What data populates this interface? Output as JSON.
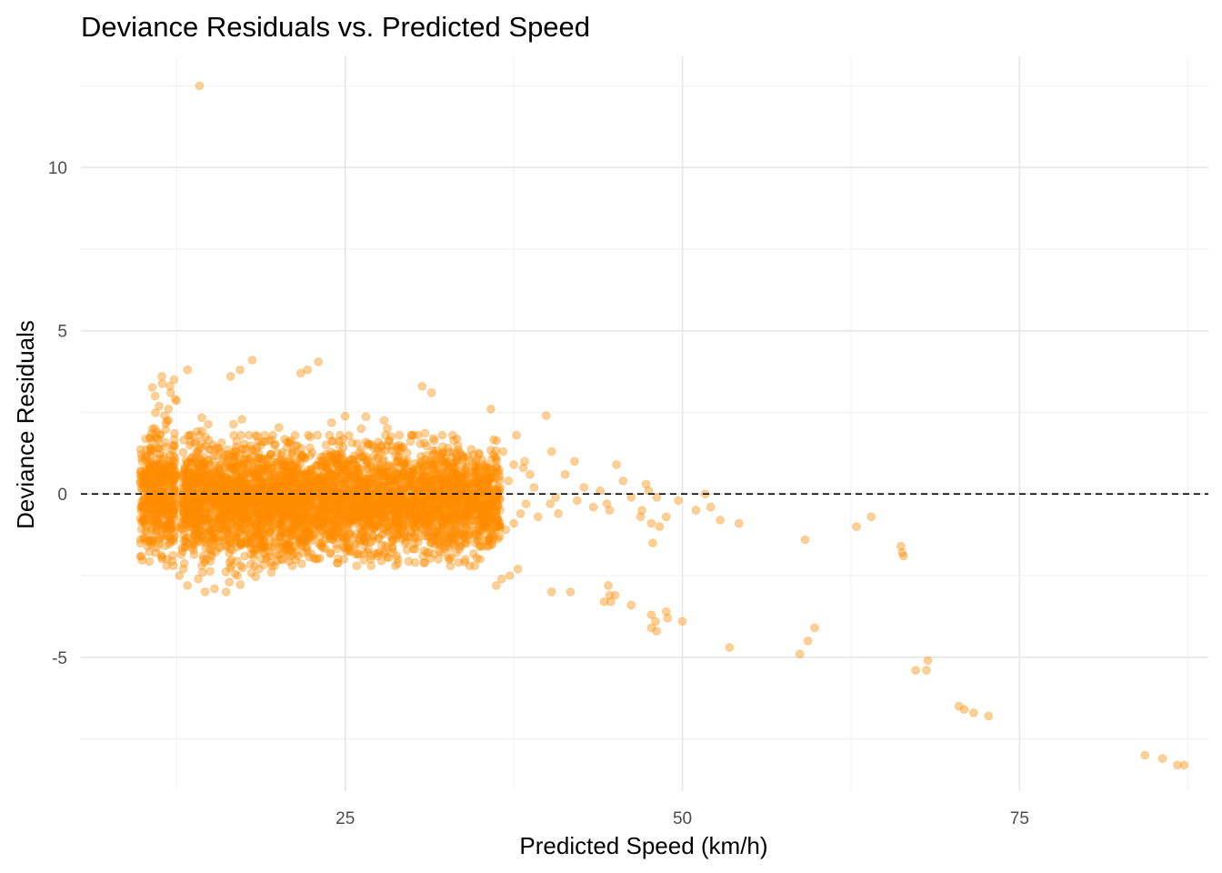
{
  "chart_data": {
    "type": "scatter",
    "title": "Deviance Residuals vs. Predicted Speed",
    "xlabel": "Predicted Speed (km/h)",
    "ylabel": "Deviance Residuals",
    "xlim": [
      5.4,
      89.0
    ],
    "ylim": [
      -9.1,
      13.4
    ],
    "x_ticks": [
      25,
      50,
      75
    ],
    "x_tick_labels": [
      "25",
      "50",
      "75"
    ],
    "x_minor_ticks": [
      12.5,
      37.5,
      62.5,
      87.5
    ],
    "y_ticks": [
      -5,
      0,
      5,
      10
    ],
    "y_tick_labels": [
      "-5",
      "0",
      "5",
      "10"
    ],
    "y_minor_ticks": [
      -7.5,
      -2.5,
      2.5,
      7.5,
      12.5
    ],
    "grid": true,
    "reference_line": {
      "y": 0,
      "style": "dashed",
      "color": "#000000"
    },
    "point_color": "#FF8C00",
    "point_opacity": 0.4,
    "series": [
      {
        "clusters": [
          {
            "x_range": [
              9.8,
              12.4
            ],
            "y_range": [
              -2.2,
              2.0
            ],
            "count": 420
          },
          {
            "x_range": [
              10.5,
              12.5
            ],
            "y_range": [
              -1.0,
              3.6
            ],
            "count": 40
          },
          {
            "x_range": [
              12.8,
              36.5
            ],
            "y_range": [
              -2.2,
              1.8
            ],
            "count": 3200
          },
          {
            "x_range": [
              13.0,
              22.0
            ],
            "y_range": [
              -3.0,
              2.5
            ],
            "count": 320
          },
          {
            "x_range": [
              22.0,
              34.0
            ],
            "y_range": [
              -2.0,
              2.4
            ],
            "count": 260
          }
        ],
        "points": [
          {
            "x": 14.2,
            "y": 12.5
          },
          {
            "x": 13.3,
            "y": 3.8
          },
          {
            "x": 12.3,
            "y": 3.5
          },
          {
            "x": 11.4,
            "y": 3.6
          },
          {
            "x": 10.9,
            "y": 3.0
          },
          {
            "x": 18.1,
            "y": 4.1
          },
          {
            "x": 16.5,
            "y": 3.6
          },
          {
            "x": 17.2,
            "y": 3.8
          },
          {
            "x": 21.7,
            "y": 3.7
          },
          {
            "x": 22.2,
            "y": 3.8
          },
          {
            "x": 23.0,
            "y": 4.05
          },
          {
            "x": 30.7,
            "y": 3.3
          },
          {
            "x": 31.4,
            "y": 3.1
          },
          {
            "x": 35.8,
            "y": 2.6
          },
          {
            "x": 39.9,
            "y": 2.4
          },
          {
            "x": 37.7,
            "y": 1.8
          },
          {
            "x": 36.7,
            "y": 1.3
          },
          {
            "x": 38.3,
            "y": 1.0
          },
          {
            "x": 39.0,
            "y": 0.2
          },
          {
            "x": 40.3,
            "y": 1.3
          },
          {
            "x": 41.3,
            "y": 0.6
          },
          {
            "x": 42.0,
            "y": 1.0
          },
          {
            "x": 42.7,
            "y": 0.2
          },
          {
            "x": 43.9,
            "y": 0.1
          },
          {
            "x": 44.4,
            "y": -0.3
          },
          {
            "x": 45.1,
            "y": 0.9
          },
          {
            "x": 45.6,
            "y": 0.4
          },
          {
            "x": 47.3,
            "y": 0.3
          },
          {
            "x": 47.5,
            "y": 0.1
          },
          {
            "x": 48.1,
            "y": -0.1
          },
          {
            "x": 47.0,
            "y": -0.5
          },
          {
            "x": 46.9,
            "y": -0.7
          },
          {
            "x": 47.7,
            "y": -0.9
          },
          {
            "x": 48.3,
            "y": -1.0
          },
          {
            "x": 48.8,
            "y": -0.7
          },
          {
            "x": 47.8,
            "y": -1.5
          },
          {
            "x": 49.7,
            "y": -0.2
          },
          {
            "x": 51.0,
            "y": -0.5
          },
          {
            "x": 51.7,
            "y": 0.0
          },
          {
            "x": 52.1,
            "y": -0.4
          },
          {
            "x": 52.8,
            "y": -0.8
          },
          {
            "x": 54.2,
            "y": -0.9
          },
          {
            "x": 40.2,
            "y": -0.3
          },
          {
            "x": 40.8,
            "y": -0.6
          },
          {
            "x": 42.2,
            "y": -0.2
          },
          {
            "x": 43.4,
            "y": -0.4
          },
          {
            "x": 44.6,
            "y": -0.5
          },
          {
            "x": 46.2,
            "y": -0.1
          },
          {
            "x": 40.3,
            "y": -3.0
          },
          {
            "x": 41.7,
            "y": -3.0
          },
          {
            "x": 44.2,
            "y": -3.3
          },
          {
            "x": 44.5,
            "y": -2.8
          },
          {
            "x": 44.6,
            "y": -3.1
          },
          {
            "x": 44.7,
            "y": -3.3
          },
          {
            "x": 45.0,
            "y": -3.1
          },
          {
            "x": 46.2,
            "y": -3.4
          },
          {
            "x": 47.7,
            "y": -3.7
          },
          {
            "x": 48.0,
            "y": -3.9
          },
          {
            "x": 48.8,
            "y": -3.6
          },
          {
            "x": 48.9,
            "y": -3.8
          },
          {
            "x": 48.1,
            "y": -4.2
          },
          {
            "x": 47.7,
            "y": -4.1
          },
          {
            "x": 50.0,
            "y": -3.9
          },
          {
            "x": 53.5,
            "y": -4.7
          },
          {
            "x": 58.7,
            "y": -4.9
          },
          {
            "x": 59.3,
            "y": -4.5
          },
          {
            "x": 59.8,
            "y": -4.1
          },
          {
            "x": 59.1,
            "y": -1.4
          },
          {
            "x": 62.9,
            "y": -1.0
          },
          {
            "x": 64.0,
            "y": -0.7
          },
          {
            "x": 66.2,
            "y": -1.6
          },
          {
            "x": 66.3,
            "y": -1.8
          },
          {
            "x": 66.4,
            "y": -1.9
          },
          {
            "x": 67.3,
            "y": -5.4
          },
          {
            "x": 68.2,
            "y": -5.1
          },
          {
            "x": 68.1,
            "y": -5.4
          },
          {
            "x": 70.5,
            "y": -6.5
          },
          {
            "x": 70.9,
            "y": -6.6
          },
          {
            "x": 71.6,
            "y": -6.7
          },
          {
            "x": 72.7,
            "y": -6.8
          },
          {
            "x": 84.3,
            "y": -8.0
          },
          {
            "x": 85.6,
            "y": -8.1
          },
          {
            "x": 86.7,
            "y": -8.3
          },
          {
            "x": 87.2,
            "y": -8.3
          },
          {
            "x": 36.2,
            "y": -2.8
          },
          {
            "x": 37.2,
            "y": -2.5
          },
          {
            "x": 37.8,
            "y": -2.3
          },
          {
            "x": 36.6,
            "y": -2.6
          },
          {
            "x": 35.0,
            "y": -2.0
          },
          {
            "x": 34.6,
            "y": -2.2
          },
          {
            "x": 33.9,
            "y": -2.0
          },
          {
            "x": 33.4,
            "y": -2.1
          },
          {
            "x": 32.8,
            "y": -2.2
          },
          {
            "x": 31.9,
            "y": -2.0
          },
          {
            "x": 30.9,
            "y": -2.1
          },
          {
            "x": 28.9,
            "y": -2.0
          },
          {
            "x": 27.4,
            "y": -1.9
          },
          {
            "x": 26.9,
            "y": -2.0
          },
          {
            "x": 24.9,
            "y": -2.0
          },
          {
            "x": 23.9,
            "y": -1.8
          },
          {
            "x": 22.8,
            "y": -2.0
          },
          {
            "x": 21.9,
            "y": -1.8
          },
          {
            "x": 19.5,
            "y": -2.1
          },
          {
            "x": 18.6,
            "y": -2.3
          },
          {
            "x": 17.0,
            "y": -2.5
          },
          {
            "x": 16.4,
            "y": -2.7
          },
          {
            "x": 15.3,
            "y": -2.9
          },
          {
            "x": 14.6,
            "y": -3.0
          },
          {
            "x": 13.3,
            "y": -2.8
          },
          {
            "x": 12.7,
            "y": -2.5
          },
          {
            "x": 38.7,
            "y": 0.6
          },
          {
            "x": 38.2,
            "y": 0.8
          },
          {
            "x": 37.5,
            "y": 0.9
          },
          {
            "x": 37.1,
            "y": 0.4
          },
          {
            "x": 38.0,
            "y": -0.6
          },
          {
            "x": 37.5,
            "y": -0.9
          },
          {
            "x": 36.9,
            "y": -1.1
          },
          {
            "x": 38.4,
            "y": -0.3
          },
          {
            "x": 39.3,
            "y": -0.7
          },
          {
            "x": 40.6,
            "y": -0.1
          },
          {
            "x": 12.4,
            "y": 2.9
          },
          {
            "x": 12.0,
            "y": 3.3
          },
          {
            "x": 11.9,
            "y": 2.6
          },
          {
            "x": 11.6,
            "y": 2.4
          },
          {
            "x": 13.0,
            "y": -2.3
          },
          {
            "x": 14.1,
            "y": -2.6
          }
        ]
      }
    ]
  }
}
